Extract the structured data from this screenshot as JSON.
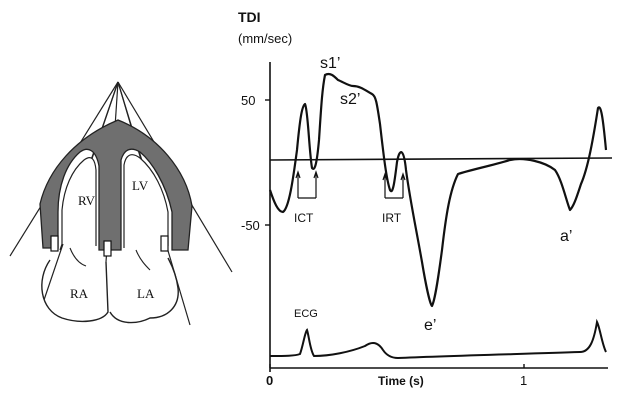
{
  "heart": {
    "labels": {
      "rv": "RV",
      "lv": "LV",
      "ra": "RA",
      "la": "LA"
    }
  },
  "tdi": {
    "title": "TDI",
    "unit": "(mm/sec)",
    "y_ticks": [
      "50",
      "-50"
    ],
    "x_ticks": [
      "0",
      "1"
    ],
    "xlabel": "Time (s)",
    "annotations": {
      "s1": "s1’",
      "s2": "s2’",
      "e": "e’",
      "a": "a’",
      "ict": "ICT",
      "irt": "IRT",
      "ecg": "ECG"
    }
  },
  "colors": {
    "myocardium": "#6f6f6f",
    "line": "#111111",
    "background": "#ffffff"
  }
}
